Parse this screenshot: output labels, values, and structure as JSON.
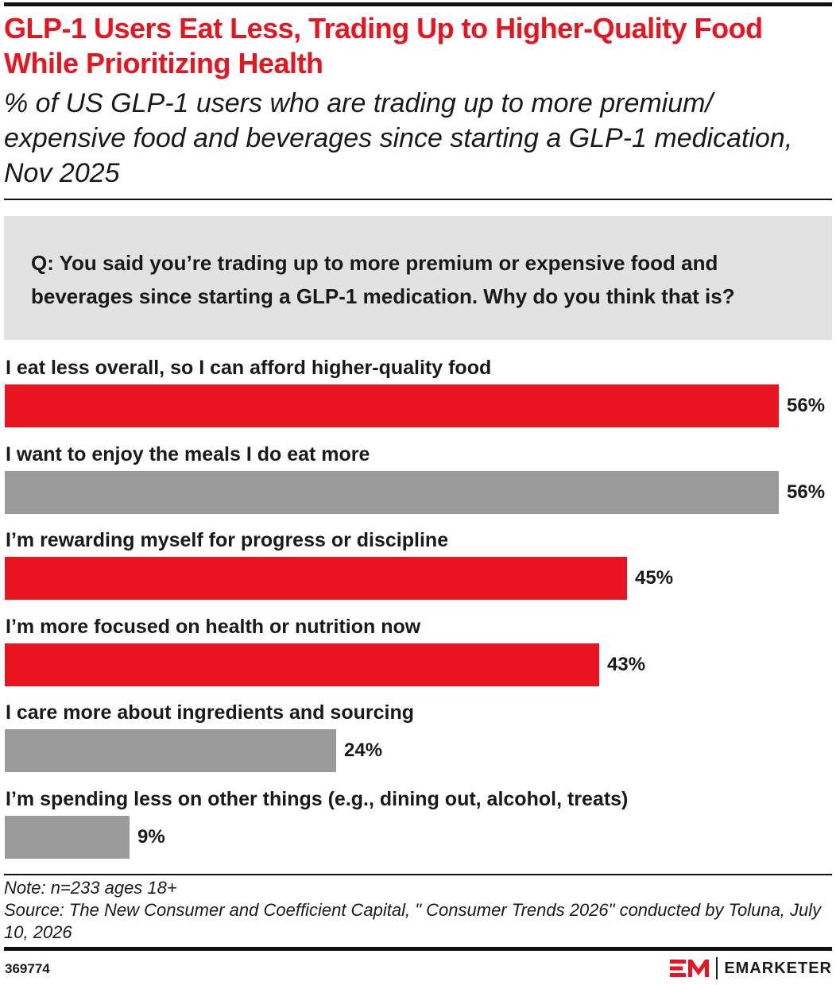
{
  "header": {
    "title": "GLP-1 Users Eat Less, Trading Up to Higher-Quality Food While Prioritizing Health",
    "subtitle": "% of US GLP-1 users who are trading up to more premium/ expensive food and beverages since starting a GLP-1 medication, Nov 2025"
  },
  "question": "Q: You said you’re trading up to more premium or expensive food and beverages since starting a GLP-1 medication. Why do you think that is?",
  "chart_data": {
    "type": "bar",
    "orientation": "horizontal",
    "categories": [
      "I eat less overall, so I can afford higher-quality food",
      "I want to enjoy the meals I do eat more",
      "I’m rewarding myself for progress or discipline",
      "I’m more focused on health or nutrition now",
      "I care more about ingredients and sourcing",
      "I’m spending less on other things (e.g., dining out, alcohol, treats)"
    ],
    "values": [
      56,
      56,
      45,
      43,
      24,
      9
    ],
    "value_labels": [
      "56%",
      "56%",
      "45%",
      "43%",
      "24%",
      "9%"
    ],
    "bar_colors": [
      "#e8141f",
      "#9b9b9b",
      "#e8141f",
      "#e8141f",
      "#9b9b9b",
      "#9b9b9b"
    ],
    "xlim": [
      0,
      56
    ],
    "grid": false,
    "legend": "none"
  },
  "footer": {
    "note": "Note: n=233 ages 18+",
    "source": "Source: The New Consumer and Coefficient Capital, \" Consumer Trends 2026\" conducted by Toluna, July 10, 2026",
    "chart_id": "369774",
    "brand": "EMARKETER"
  },
  "colors": {
    "accent": "#e8141f",
    "neutral_bar": "#9b9b9b",
    "question_bg": "#e2e2e2",
    "text": "#1a1a1a"
  },
  "icons": {
    "brand_logo": "em-logo-icon"
  }
}
